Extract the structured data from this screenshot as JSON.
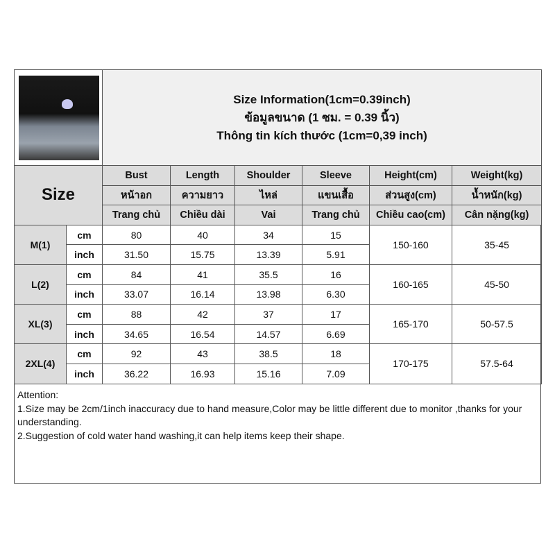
{
  "title": {
    "line1": "Size Information(1cm=0.39inch)",
    "line2": "ข้อมูลขนาด (1 ซม. = 0.39 นิ้ว)",
    "line3": "Thông tin kích thước (1cm=0,39 inch)"
  },
  "size_label": "Size",
  "headers": [
    [
      "Bust",
      "Length",
      "Shoulder",
      "Sleeve",
      "Height(cm)",
      "Weight(kg)"
    ],
    [
      "หน้าอก",
      "ความยาว",
      "ไหล่",
      "แขนเสื้อ",
      "ส่วนสูง(cm)",
      "น้ำหนัก(kg)"
    ],
    [
      "Trang chủ",
      "Chiều dài",
      "Vai",
      "Trang chủ",
      "Chiều cao(cm)",
      "Cân nặng(kg)"
    ]
  ],
  "units": {
    "cm": "cm",
    "inch": "inch"
  },
  "rows": [
    {
      "size": "M(1)",
      "cm": [
        "80",
        "40",
        "34",
        "15"
      ],
      "inch": [
        "31.50",
        "15.75",
        "13.39",
        "5.91"
      ],
      "height": "150-160",
      "weight": "35-45"
    },
    {
      "size": "L(2)",
      "cm": [
        "84",
        "41",
        "35.5",
        "16"
      ],
      "inch": [
        "33.07",
        "16.14",
        "13.98",
        "6.30"
      ],
      "height": "160-165",
      "weight": "45-50"
    },
    {
      "size": "XL(3)",
      "cm": [
        "88",
        "42",
        "37",
        "17"
      ],
      "inch": [
        "34.65",
        "16.54",
        "14.57",
        "6.69"
      ],
      "height": "165-170",
      "weight": "50-57.5"
    },
    {
      "size": "2XL(4)",
      "cm": [
        "92",
        "43",
        "38.5",
        "18"
      ],
      "inch": [
        "36.22",
        "16.93",
        "15.16",
        "7.09"
      ],
      "height": "170-175",
      "weight": "57.5-64"
    }
  ],
  "attention": {
    "heading": "Attention:",
    "note1": "1.Size may be 2cm/1inch inaccuracy due to hand measure,Color may be little different due to monitor ,thanks for your understanding.",
    "note2": "2.Suggestion of cold water hand washing,it can help items keep their shape."
  }
}
